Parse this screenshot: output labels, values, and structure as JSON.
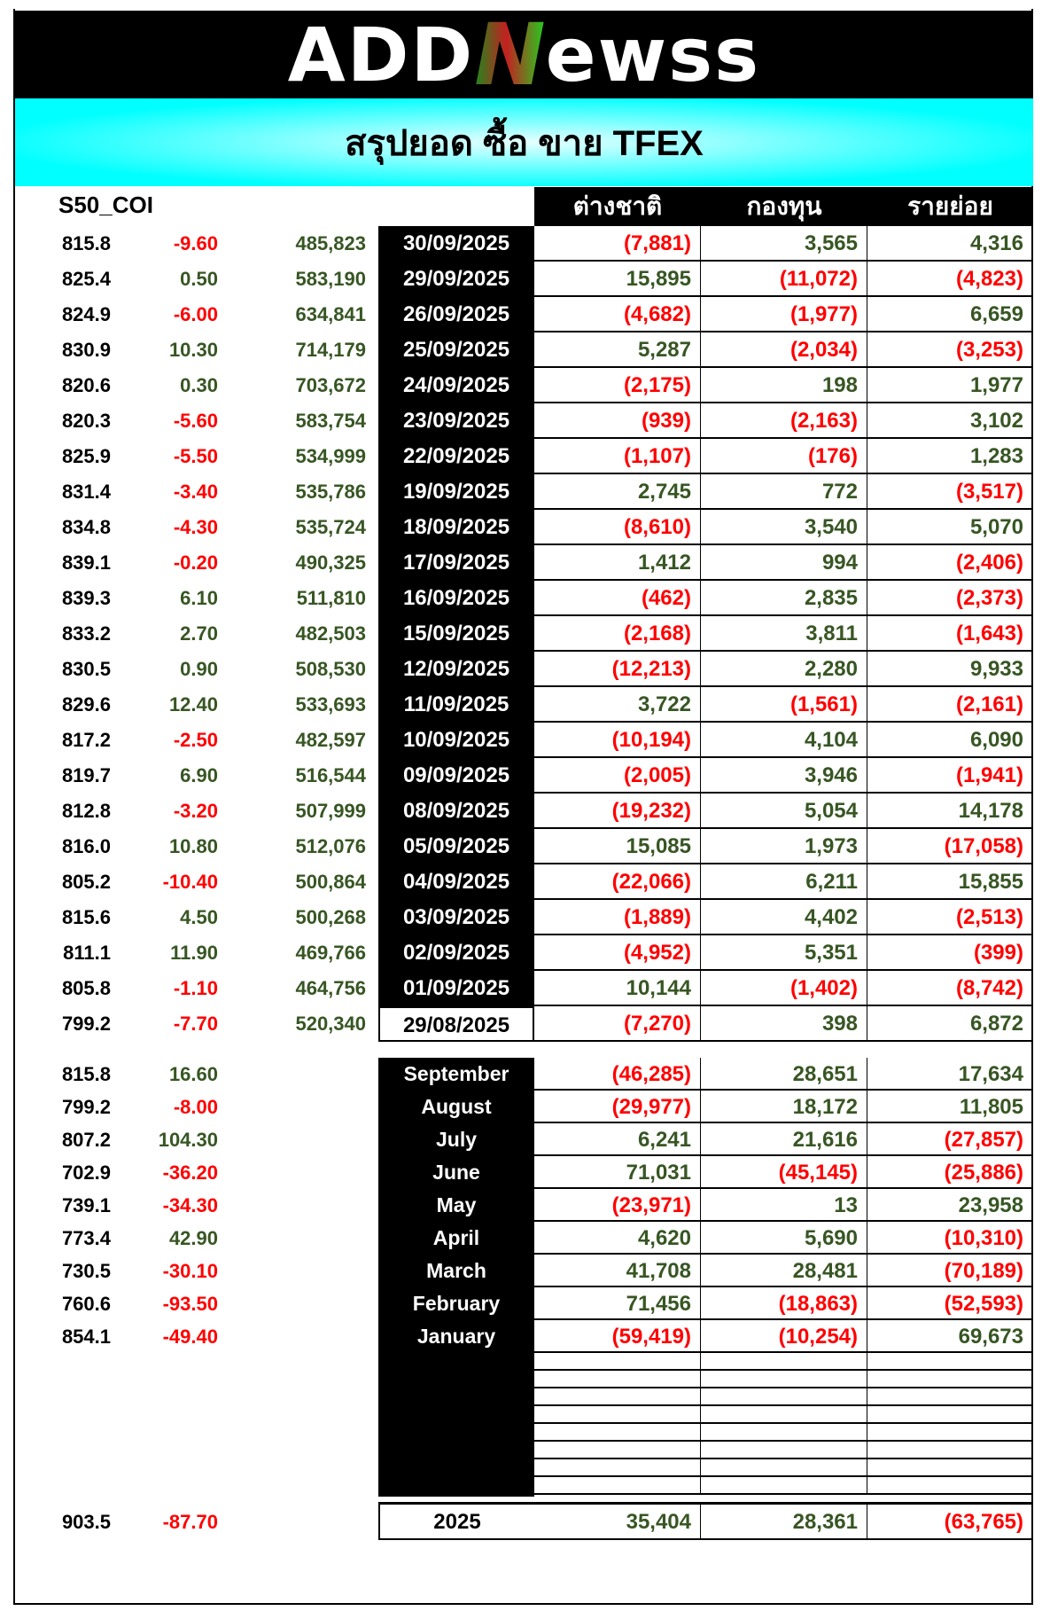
{
  "logo": {
    "part1": "ADD",
    "part2": "N",
    "part3": "ewss"
  },
  "title": "สรุปยอด ซื้อ ขาย TFEX",
  "index_label": "S50_COI",
  "columns": [
    "ต่างชาติ",
    "กองทุน",
    "รายย่อย"
  ],
  "colors": {
    "positive": "#375623",
    "negative": "#ff0000",
    "header_bg": "#000000",
    "banner": "#00ffff"
  },
  "daily": [
    {
      "close": "815.8",
      "change": "-9.60",
      "oi": "485,823",
      "date": "30/09/2025",
      "foreign": "(7,881)",
      "fund": "3,565",
      "retail": "4,316"
    },
    {
      "close": "825.4",
      "change": "0.50",
      "oi": "583,190",
      "date": "29/09/2025",
      "foreign": "15,895",
      "fund": "(11,072)",
      "retail": "(4,823)"
    },
    {
      "close": "824.9",
      "change": "-6.00",
      "oi": "634,841",
      "date": "26/09/2025",
      "foreign": "(4,682)",
      "fund": "(1,977)",
      "retail": "6,659"
    },
    {
      "close": "830.9",
      "change": "10.30",
      "oi": "714,179",
      "date": "25/09/2025",
      "foreign": "5,287",
      "fund": "(2,034)",
      "retail": "(3,253)"
    },
    {
      "close": "820.6",
      "change": "0.30",
      "oi": "703,672",
      "date": "24/09/2025",
      "foreign": "(2,175)",
      "fund": "198",
      "retail": "1,977"
    },
    {
      "close": "820.3",
      "change": "-5.60",
      "oi": "583,754",
      "date": "23/09/2025",
      "foreign": "(939)",
      "fund": "(2,163)",
      "retail": "3,102"
    },
    {
      "close": "825.9",
      "change": "-5.50",
      "oi": "534,999",
      "date": "22/09/2025",
      "foreign": "(1,107)",
      "fund": "(176)",
      "retail": "1,283"
    },
    {
      "close": "831.4",
      "change": "-3.40",
      "oi": "535,786",
      "date": "19/09/2025",
      "foreign": "2,745",
      "fund": "772",
      "retail": "(3,517)"
    },
    {
      "close": "834.8",
      "change": "-4.30",
      "oi": "535,724",
      "date": "18/09/2025",
      "foreign": "(8,610)",
      "fund": "3,540",
      "retail": "5,070"
    },
    {
      "close": "839.1",
      "change": "-0.20",
      "oi": "490,325",
      "date": "17/09/2025",
      "foreign": "1,412",
      "fund": "994",
      "retail": "(2,406)"
    },
    {
      "close": "839.3",
      "change": "6.10",
      "oi": "511,810",
      "date": "16/09/2025",
      "foreign": "(462)",
      "fund": "2,835",
      "retail": "(2,373)"
    },
    {
      "close": "833.2",
      "change": "2.70",
      "oi": "482,503",
      "date": "15/09/2025",
      "foreign": "(2,168)",
      "fund": "3,811",
      "retail": "(1,643)"
    },
    {
      "close": "830.5",
      "change": "0.90",
      "oi": "508,530",
      "date": "12/09/2025",
      "foreign": "(12,213)",
      "fund": "2,280",
      "retail": "9,933"
    },
    {
      "close": "829.6",
      "change": "12.40",
      "oi": "533,693",
      "date": "11/09/2025",
      "foreign": "3,722",
      "fund": "(1,561)",
      "retail": "(2,161)"
    },
    {
      "close": "817.2",
      "change": "-2.50",
      "oi": "482,597",
      "date": "10/09/2025",
      "foreign": "(10,194)",
      "fund": "4,104",
      "retail": "6,090"
    },
    {
      "close": "819.7",
      "change": "6.90",
      "oi": "516,544",
      "date": "09/09/2025",
      "foreign": "(2,005)",
      "fund": "3,946",
      "retail": "(1,941)"
    },
    {
      "close": "812.8",
      "change": "-3.20",
      "oi": "507,999",
      "date": "08/09/2025",
      "foreign": "(19,232)",
      "fund": "5,054",
      "retail": "14,178"
    },
    {
      "close": "816.0",
      "change": "10.80",
      "oi": "512,076",
      "date": "05/09/2025",
      "foreign": "15,085",
      "fund": "1,973",
      "retail": "(17,058)"
    },
    {
      "close": "805.2",
      "change": "-10.40",
      "oi": "500,864",
      "date": "04/09/2025",
      "foreign": "(22,066)",
      "fund": "6,211",
      "retail": "15,855"
    },
    {
      "close": "815.6",
      "change": "4.50",
      "oi": "500,268",
      "date": "03/09/2025",
      "foreign": "(1,889)",
      "fund": "4,402",
      "retail": "(2,513)"
    },
    {
      "close": "811.1",
      "change": "11.90",
      "oi": "469,766",
      "date": "02/09/2025",
      "foreign": "(4,952)",
      "fund": "5,351",
      "retail": "(399)"
    },
    {
      "close": "805.8",
      "change": "-1.10",
      "oi": "464,756",
      "date": "01/09/2025",
      "foreign": "10,144",
      "fund": "(1,402)",
      "retail": "(8,742)"
    },
    {
      "close": "799.2",
      "change": "-7.70",
      "oi": "520,340",
      "date": "29/08/2025",
      "foreign": "(7,270)",
      "fund": "398",
      "retail": "6,872"
    }
  ],
  "monthly": [
    {
      "close": "815.8",
      "change": "16.60",
      "month": "September",
      "foreign": "(46,285)",
      "fund": "28,651",
      "retail": "17,634"
    },
    {
      "close": "799.2",
      "change": "-8.00",
      "month": "August",
      "foreign": "(29,977)",
      "fund": "18,172",
      "retail": "11,805"
    },
    {
      "close": "807.2",
      "change": "104.30",
      "month": "July",
      "foreign": "6,241",
      "fund": "21,616",
      "retail": "(27,857)"
    },
    {
      "close": "702.9",
      "change": "-36.20",
      "month": "June",
      "foreign": "71,031",
      "fund": "(45,145)",
      "retail": "(25,886)"
    },
    {
      "close": "739.1",
      "change": "-34.30",
      "month": "May",
      "foreign": "(23,971)",
      "fund": "13",
      "retail": "23,958"
    },
    {
      "close": "773.4",
      "change": "42.90",
      "month": "April",
      "foreign": "4,620",
      "fund": "5,690",
      "retail": "(10,310)"
    },
    {
      "close": "730.5",
      "change": "-30.10",
      "month": "March",
      "foreign": "41,708",
      "fund": "28,481",
      "retail": "(70,189)"
    },
    {
      "close": "760.6",
      "change": "-93.50",
      "month": "February",
      "foreign": "71,456",
      "fund": "(18,863)",
      "retail": "(52,593)"
    },
    {
      "close": "854.1",
      "change": "-49.40",
      "month": "January",
      "foreign": "(59,419)",
      "fund": "(10,254)",
      "retail": "69,673"
    }
  ],
  "total": {
    "close": "903.5",
    "change": "-87.70",
    "label": "2025",
    "foreign": "35,404",
    "fund": "28,361",
    "retail": "(63,765)"
  }
}
